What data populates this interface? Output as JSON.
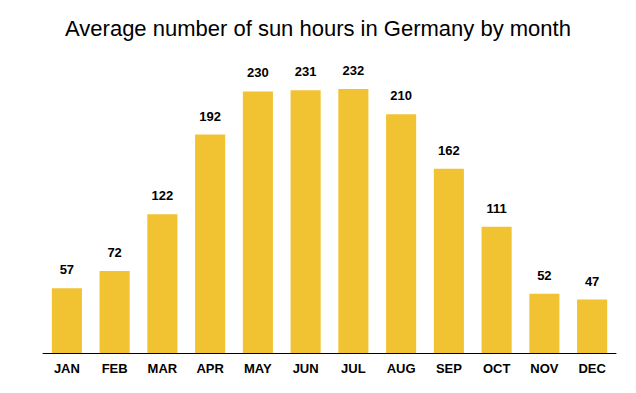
{
  "chart_data": {
    "type": "bar",
    "title": "Average number of sun hours in Germany by month",
    "categories": [
      "JAN",
      "FEB",
      "MAR",
      "APR",
      "MAY",
      "JUN",
      "JUL",
      "AUG",
      "SEP",
      "OCT",
      "NOV",
      "DEC"
    ],
    "values": [
      57,
      72,
      122,
      192,
      230,
      231,
      232,
      210,
      162,
      111,
      52,
      47
    ],
    "color": "#f1c232",
    "ylim": [
      0,
      240
    ],
    "grid": false,
    "data_labels": true,
    "tick_labels": "x"
  }
}
